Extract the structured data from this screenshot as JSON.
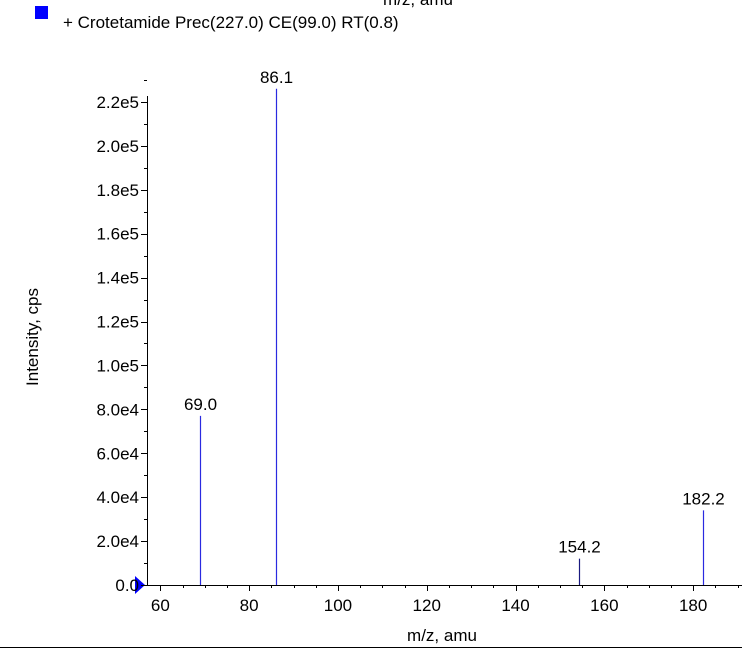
{
  "chart_data": {
    "type": "bar",
    "subtype": "mass-spectrum-stick",
    "top_clipped_label": "m/z, amu",
    "legend": {
      "label": "+ Crotetamide Prec(227.0) CE(99.0) RT(0.8)",
      "color": "#0000ff",
      "placement": "top-left"
    },
    "xlabel": "m/z, amu",
    "ylabel": "Intensity, cps",
    "xlim": [
      57,
      191
    ],
    "ylim": [
      0,
      230000
    ],
    "xticks": [
      60,
      80,
      100,
      120,
      140,
      160,
      180
    ],
    "xtick_labels": [
      "60",
      "80",
      "100",
      "120",
      "140",
      "160",
      "180"
    ],
    "yticks": [
      0,
      20000,
      40000,
      60000,
      80000,
      100000,
      120000,
      140000,
      160000,
      180000,
      200000,
      220000
    ],
    "ytick_labels": [
      "0.0",
      "2.0e4",
      "4.0e4",
      "6.0e4",
      "8.0e4",
      "1.0e5",
      "1.2e5",
      "1.4e5",
      "1.6e5",
      "1.8e5",
      "2.0e5",
      "2.2e5"
    ],
    "grid": false,
    "peaks": [
      {
        "mz": 69.0,
        "intensity": 77000,
        "label": "69.0",
        "color": "#2a2ae0"
      },
      {
        "mz": 86.1,
        "intensity": 226000,
        "label": "86.1",
        "color": "#2a2ae0"
      },
      {
        "mz": 154.2,
        "intensity": 12000,
        "label": "154.2",
        "color": "#1a1a80"
      },
      {
        "mz": 182.2,
        "intensity": 34000,
        "label": "182.2",
        "color": "#2a2ae0"
      }
    ]
  }
}
